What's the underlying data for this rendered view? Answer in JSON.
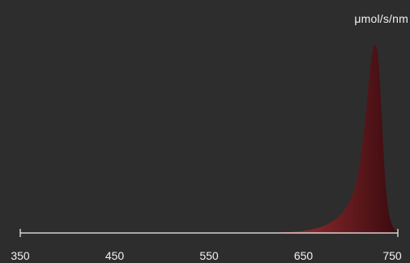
{
  "chart_data": {
    "type": "area",
    "xlabel": "",
    "ylabel": "μmol/s/nm",
    "xlim": [
      350,
      750
    ],
    "ylim": [
      0,
      1
    ],
    "xticks": [
      350,
      450,
      550,
      650,
      750
    ],
    "xtick_labels": [
      "350",
      "450",
      "550",
      "650",
      "750"
    ],
    "series": [
      {
        "x": [
          600,
          620,
          640,
          650,
          660,
          670,
          680,
          690,
          700,
          705,
          710,
          715,
          720,
          723,
          726,
          728,
          730,
          733,
          736,
          740,
          745,
          750
        ],
        "values": [
          0.0,
          0.002,
          0.006,
          0.011,
          0.02,
          0.035,
          0.06,
          0.1,
          0.18,
          0.25,
          0.38,
          0.58,
          0.84,
          0.96,
          1.0,
          0.97,
          0.88,
          0.62,
          0.33,
          0.12,
          0.03,
          0.01
        ]
      }
    ],
    "colors": {
      "background": "#2e2d2d",
      "axis": "#f2f2f2",
      "fill_start": "#b03a3a",
      "fill_end": "#3a0a0f"
    },
    "grid": false
  }
}
